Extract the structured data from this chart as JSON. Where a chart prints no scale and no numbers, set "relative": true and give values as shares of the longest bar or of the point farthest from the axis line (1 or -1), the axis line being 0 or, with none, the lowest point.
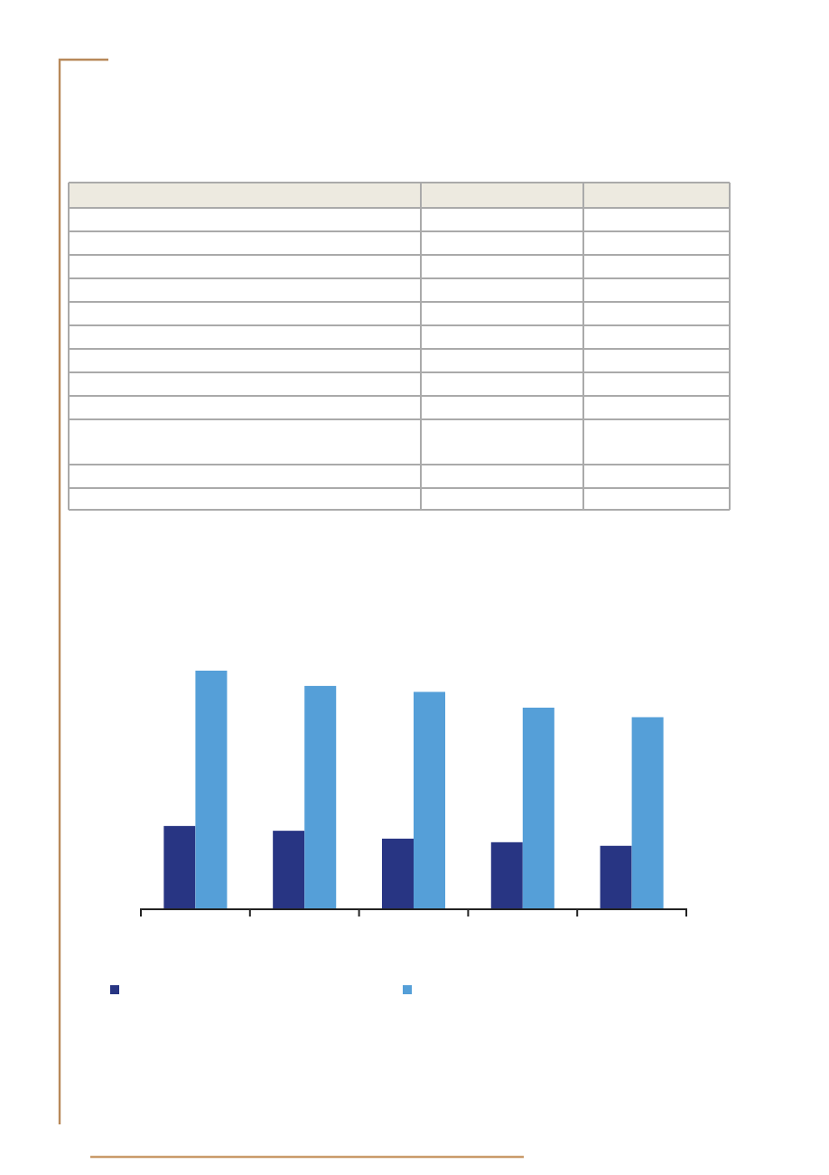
{
  "chart_data": {
    "type": "bar",
    "relative": true,
    "categories": [
      null,
      null,
      null,
      null,
      null
    ],
    "series": [
      {
        "color": "#283583",
        "values": [
          0.349,
          0.329,
          0.296,
          0.281,
          0.266
        ]
      },
      {
        "color": "#559fd8",
        "values": [
          1,
          0.936,
          0.911,
          0.845,
          0.805
        ]
      }
    ]
  }
}
